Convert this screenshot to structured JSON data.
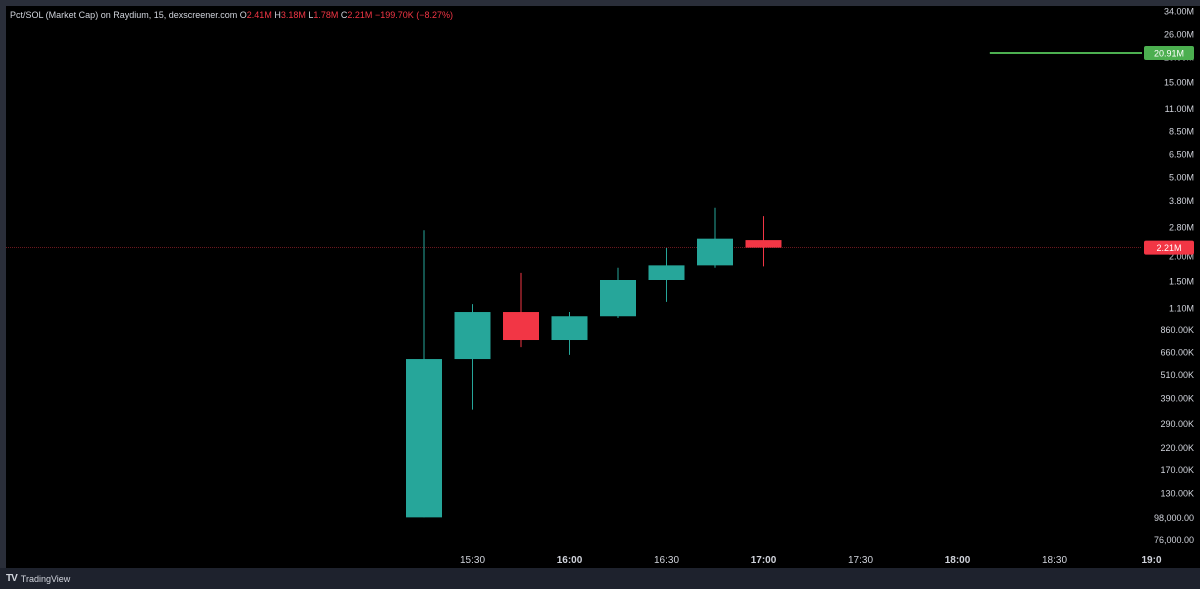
{
  "legend": {
    "symbol": "Pct/SOL (Market Cap) on Raydium, 15, dexscreener.com",
    "o_label": "O",
    "o_value": "2.41M",
    "h_label": "H",
    "h_value": "3.18M",
    "l_label": "L",
    "l_value": "1.78M",
    "c_label": "C",
    "c_value": "2.21M",
    "change": "−199.70K (−8.27%)"
  },
  "footer": {
    "brand": "TradingView",
    "logo_mark": "TV"
  },
  "colors": {
    "up": "#26a69a",
    "down": "#f23645",
    "ath_line": "#4caf50",
    "price_line": "#f23645",
    "axis_text": "#d1d4dc"
  },
  "chart_data": {
    "type": "candlestick",
    "y_scale": "log",
    "ylim": [
      68000,
      36000000
    ],
    "y_tick_labels": [
      "34.00M",
      "26.00M",
      "20.00M",
      "15.00M",
      "11.00M",
      "8.50M",
      "6.50M",
      "5.00M",
      "3.80M",
      "2.80M",
      "2.00M",
      "1.50M",
      "1.10M",
      "860.00K",
      "660.00K",
      "510.00K",
      "390.00K",
      "290.00K",
      "220.00K",
      "170.00K",
      "130.00K",
      "98,000.00",
      "76,000.00"
    ],
    "y_tick_values": [
      34000000,
      26000000,
      20000000,
      15000000,
      11000000,
      8500000,
      6500000,
      5000000,
      3800000,
      2800000,
      2000000,
      1500000,
      1100000,
      860000,
      660000,
      510000,
      390000,
      290000,
      220000,
      170000,
      130000,
      98000,
      76000
    ],
    "x_tick_labels": [
      {
        "label": "15:30",
        "t": "15:30",
        "bold": false
      },
      {
        "label": "16:00",
        "t": "16:00",
        "bold": true
      },
      {
        "label": "16:30",
        "t": "16:30",
        "bold": false
      },
      {
        "label": "17:00",
        "t": "17:00",
        "bold": true
      },
      {
        "label": "17:30",
        "t": "17:30",
        "bold": false
      },
      {
        "label": "18:00",
        "t": "18:00",
        "bold": true
      },
      {
        "label": "18:30",
        "t": "18:30",
        "bold": false
      },
      {
        "label": "19:0",
        "t": "19:00",
        "bold": true
      }
    ],
    "candles": [
      {
        "t": "15:15",
        "o": 98000,
        "h": 2700000,
        "l": 98000,
        "c": 610000
      },
      {
        "t": "15:30",
        "o": 610000,
        "h": 1150000,
        "l": 340000,
        "c": 1050000
      },
      {
        "t": "15:45",
        "o": 1050000,
        "h": 1650000,
        "l": 700000,
        "c": 760000
      },
      {
        "t": "16:00",
        "o": 760000,
        "h": 1050000,
        "l": 640000,
        "c": 1000000
      },
      {
        "t": "16:15",
        "o": 1000000,
        "h": 1750000,
        "l": 980000,
        "c": 1520000
      },
      {
        "t": "16:30",
        "o": 1520000,
        "h": 2200000,
        "l": 1180000,
        "c": 1800000
      },
      {
        "t": "16:45",
        "o": 1800000,
        "h": 3500000,
        "l": 1750000,
        "c": 2450000
      },
      {
        "t": "17:00",
        "o": 2410000,
        "h": 3180000,
        "l": 1780000,
        "c": 2210000
      }
    ],
    "ath_line": {
      "value": 20910000,
      "label": "20.91M",
      "from_t": "18:10"
    },
    "last_price": {
      "value": 2210000,
      "label": "2.21M"
    }
  }
}
